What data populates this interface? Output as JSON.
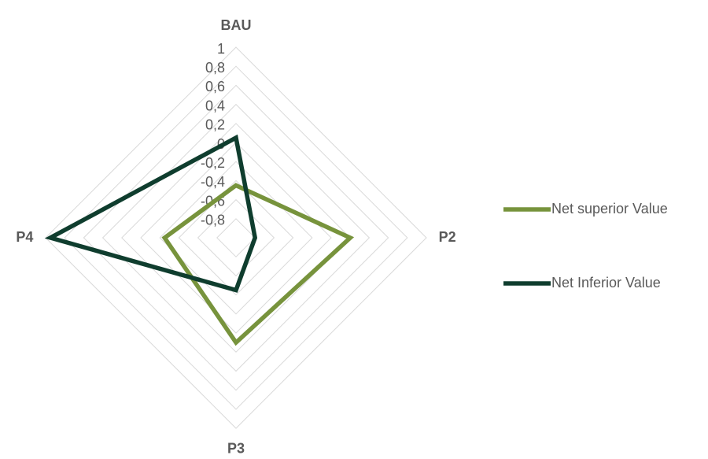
{
  "chart_data": {
    "type": "radar",
    "categories": [
      "BAU",
      "P2",
      "P3",
      "P4"
    ],
    "series": [
      {
        "name": "Net superior Value",
        "color": "#77933c",
        "values": [
          -0.45,
          0.2,
          0.1,
          -0.25
        ]
      },
      {
        "name": "Net Inferior Value",
        "color": "#0f3d2e",
        "values": [
          0.05,
          -0.8,
          -0.45,
          0.95
        ]
      }
    ],
    "ylim": [
      -1,
      1
    ],
    "yticks": [
      1,
      {
        "value": 0.8,
        "label": "0,8"
      },
      {
        "value": 0.6,
        "label": "0,6"
      },
      {
        "value": 0.4,
        "label": "0,4"
      },
      {
        "value": 0.2,
        "label": "0,2"
      },
      0,
      {
        "value": -0.2,
        "label": "-0,2"
      },
      {
        "value": -0.4,
        "label": "-0,4"
      },
      {
        "value": -0.6,
        "label": "-0,6"
      },
      {
        "value": -0.8,
        "label": "-0,8"
      }
    ],
    "grid": true,
    "legend": "right"
  }
}
